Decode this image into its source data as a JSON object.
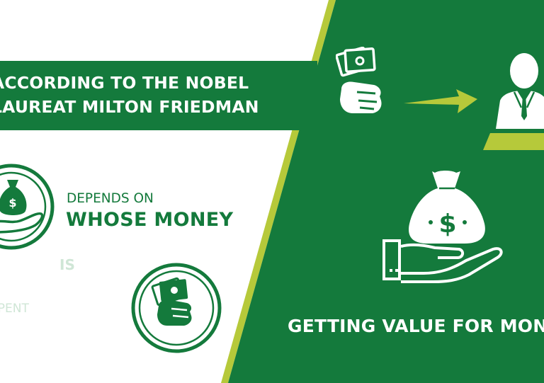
{
  "banner": {
    "line1": "ACCORDING TO THE NOBEL",
    "line2": "LAUREAT MILTON FRIEDMAN"
  },
  "left": {
    "depends": "DEPENDS ON",
    "whose_money": "WHOSE MONEY",
    "is": "IS",
    "spent": "SPENT"
  },
  "right": {
    "getting_value": "GETTING VALUE FOR MONEY"
  },
  "colors": {
    "primary_green": "#147a3c",
    "lime_accent": "#b6c93a",
    "pale_green": "#cfe6d6"
  },
  "icons": [
    "money-bag-hand-icon",
    "cash-hand-icon",
    "arrow-right-icon",
    "businessman-icon",
    "dollar-bag-hand-icon"
  ]
}
